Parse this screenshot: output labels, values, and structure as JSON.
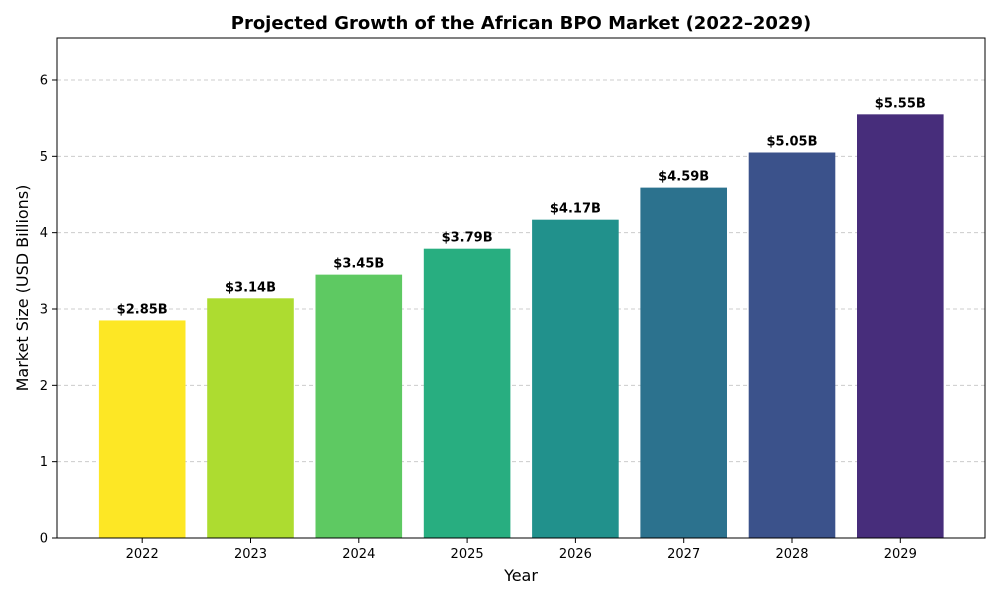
{
  "chart_data": {
    "type": "bar",
    "title": "Projected Growth of the African BPO Market (2022–2029)",
    "xlabel": "Year",
    "ylabel": "Market Size (USD Billions)",
    "categories": [
      "2022",
      "2023",
      "2024",
      "2025",
      "2026",
      "2027",
      "2028",
      "2029"
    ],
    "values": [
      2.85,
      3.14,
      3.45,
      3.79,
      4.17,
      4.59,
      5.05,
      5.55
    ],
    "data_labels": [
      "$2.85B",
      "$3.14B",
      "$3.45B",
      "$3.79B",
      "$4.17B",
      "$4.59B",
      "$5.05B",
      "$5.55B"
    ],
    "colors": [
      "#fde725",
      "#addc30",
      "#5ec962",
      "#28ae80",
      "#21918c",
      "#2c728e",
      "#3b528b",
      "#472d7b"
    ],
    "ylim": [
      0,
      6.55
    ],
    "yticks": [
      "0",
      "1",
      "2",
      "3",
      "4",
      "5",
      "6"
    ],
    "grid": "y-dashed",
    "legend": "none"
  }
}
